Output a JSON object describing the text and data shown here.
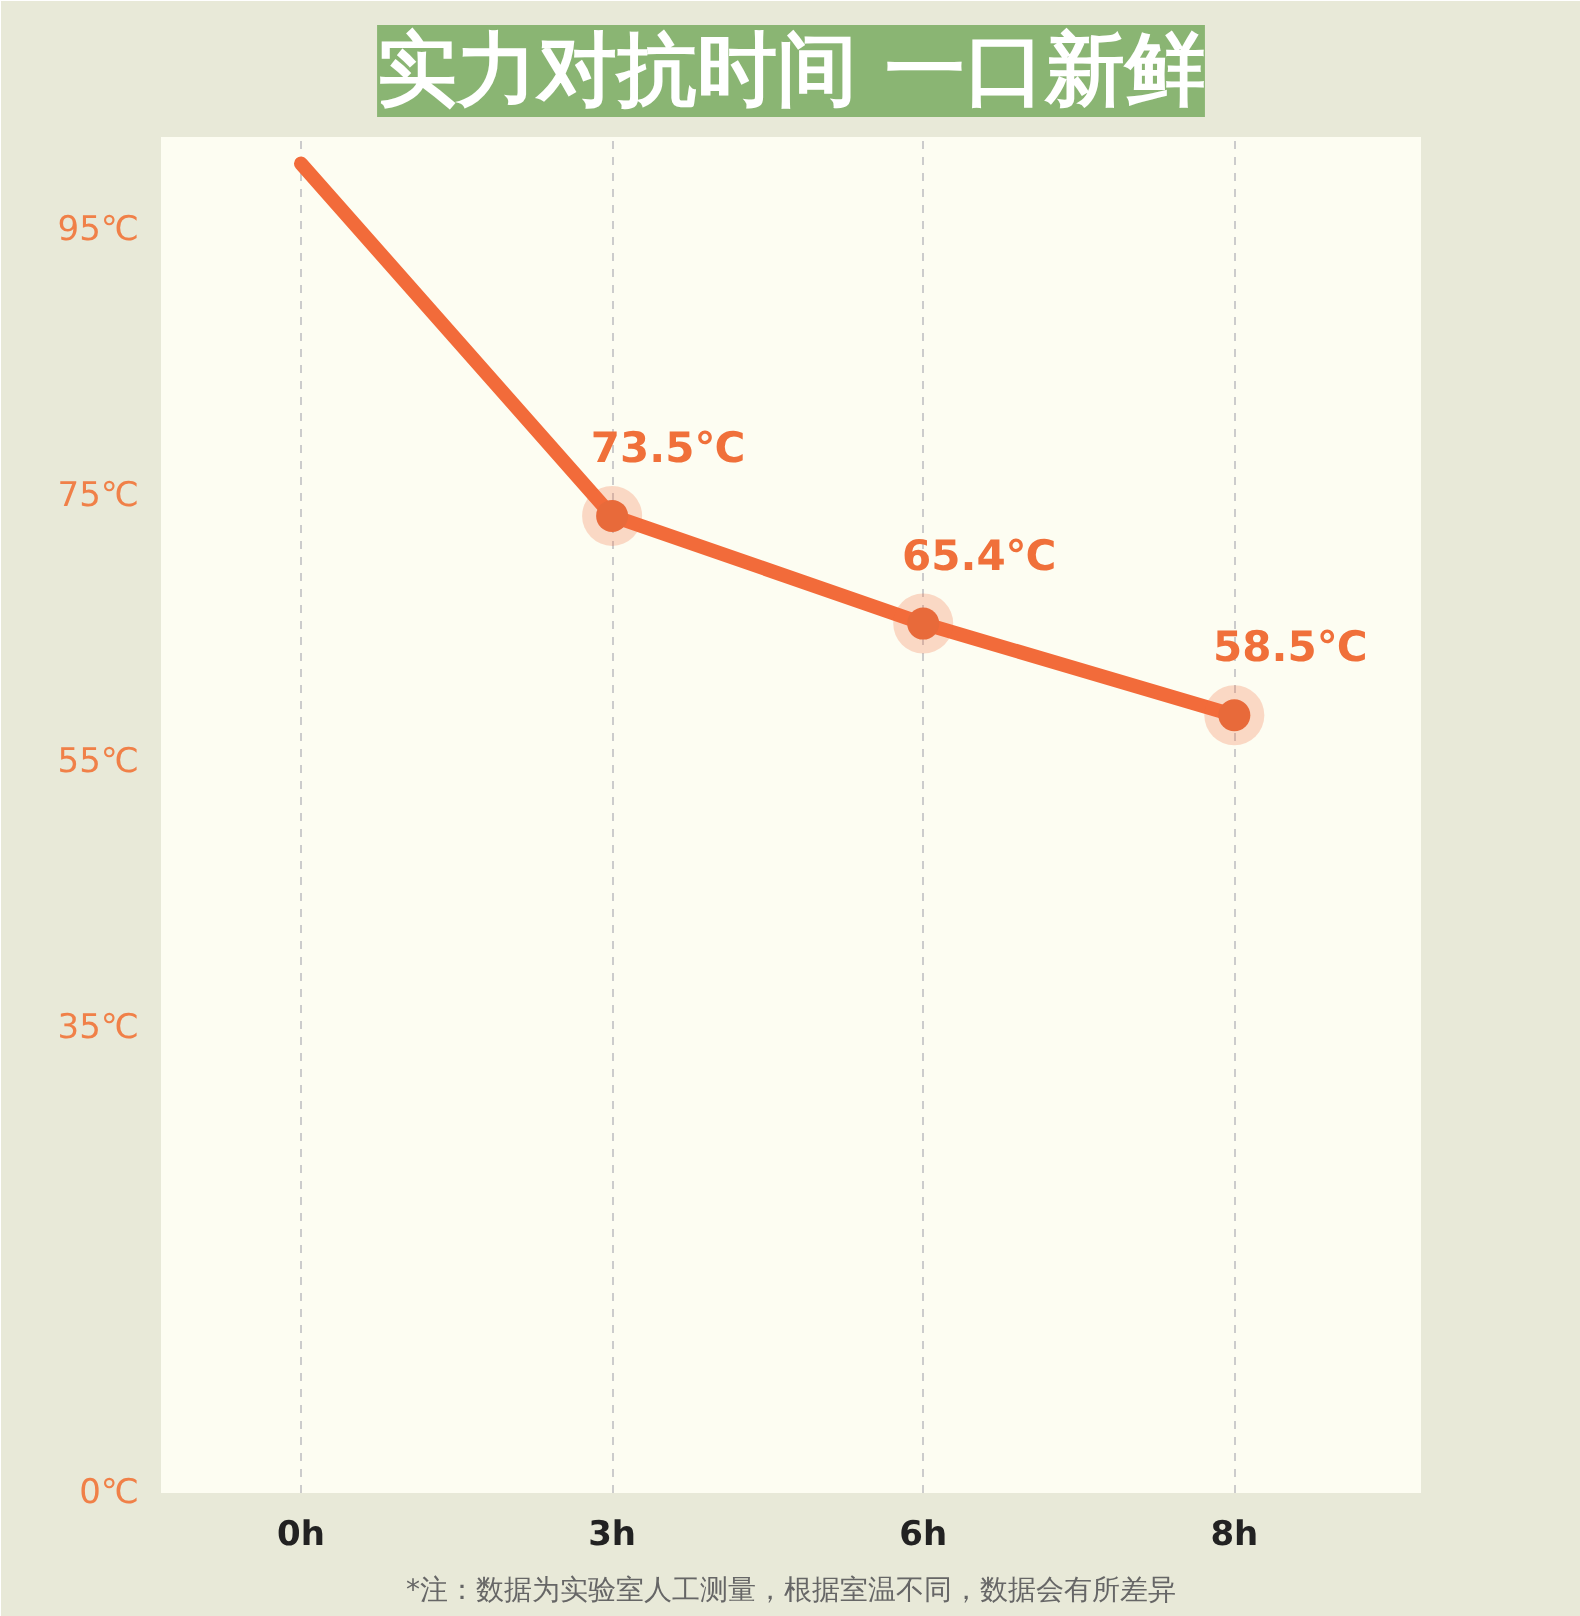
{
  "chart_data": {
    "type": "line",
    "title": "实力对抗时间 一口新鲜",
    "categories": [
      "0h",
      "3h",
      "6h",
      "8h"
    ],
    "series": [
      {
        "color": "#f26b3a",
        "values": [
          100,
          73.5,
          65.4,
          58.5
        ],
        "value_labels": [
          null,
          "73.5℃",
          "65.4℃",
          "58.5℃"
        ]
      }
    ],
    "ylim": [
      0,
      102
    ],
    "yticks": [
      {
        "value": 0,
        "label": "0℃"
      },
      {
        "value": 35,
        "label": "35℃"
      },
      {
        "value": 55,
        "label": "55℃"
      },
      {
        "value": 75,
        "label": "75℃"
      },
      {
        "value": 95,
        "label": "95℃"
      }
    ],
    "grid": "x",
    "marker": "circle",
    "line_style": "solid",
    "annotations": [
      "*注：数据为实验室人工测量，根据室温不同，数据会有所差异"
    ]
  }
}
